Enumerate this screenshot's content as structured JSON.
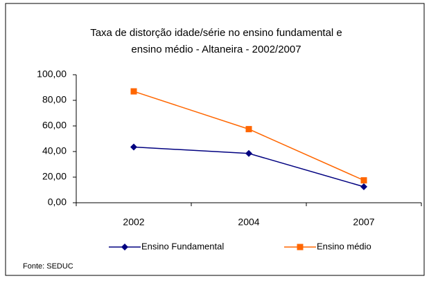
{
  "chart_data": {
    "type": "line",
    "title": [
      "Taxa de distorção idade/série no ensino fundamental e",
      "ensino médio - Altaneira - 2002/2007"
    ],
    "categories": [
      "2002",
      "2004",
      "2007"
    ],
    "series": [
      {
        "name": "Ensino Fundamental",
        "color": "#000080",
        "marker": "diamond",
        "values": [
          43.5,
          38.5,
          12.5
        ]
      },
      {
        "name": "Ensino médio",
        "color": "#FF6600",
        "marker": "square",
        "values": [
          87,
          57.5,
          17.5
        ]
      }
    ],
    "ylim": [
      0,
      100
    ],
    "yticks": [
      {
        "value": 0,
        "label": "0,00"
      },
      {
        "value": 20,
        "label": "20,00"
      },
      {
        "value": 40,
        "label": "40,00"
      },
      {
        "value": 60,
        "label": "60,00"
      },
      {
        "value": 80,
        "label": "80,00"
      },
      {
        "value": 100,
        "label": "100,00"
      }
    ],
    "grid": false,
    "legend": "bottom",
    "annotations": [
      "Fonte: SEDUC"
    ]
  }
}
